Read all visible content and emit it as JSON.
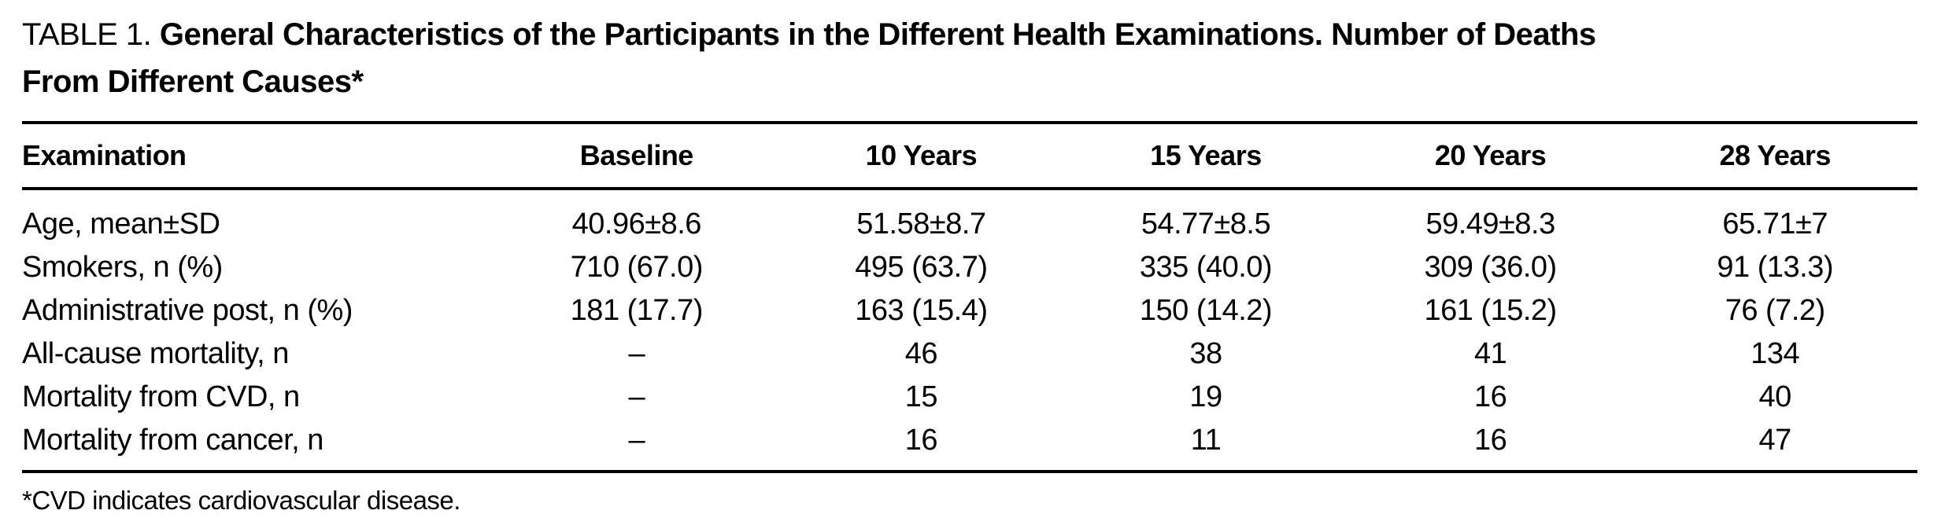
{
  "title": {
    "prefix": "TABLE 1.",
    "line1": "General Characteristics of the Participants in the Different Health Examinations. Number of Deaths",
    "line2": "From Different Causes*"
  },
  "columns": [
    "Examination",
    "Baseline",
    "10 Years",
    "15 Years",
    "20 Years",
    "28 Years"
  ],
  "rows": [
    {
      "label": "Age, mean±SD",
      "values": [
        "40.96±8.6",
        "51.58±8.7",
        "54.77±8.5",
        "59.49±8.3",
        "65.71±7"
      ]
    },
    {
      "label": "Smokers, n (%)",
      "values": [
        "710 (67.0)",
        "495 (63.7)",
        "335 (40.0)",
        "309 (36.0)",
        "91 (13.3)"
      ]
    },
    {
      "label": "Administrative post, n (%)",
      "values": [
        "181 (17.7)",
        "163 (15.4)",
        "150 (14.2)",
        "161 (15.2)",
        "76 (7.2)"
      ]
    },
    {
      "label": "All-cause mortality, n",
      "values": [
        "–",
        "46",
        "38",
        "41",
        "134"
      ]
    },
    {
      "label": "Mortality from CVD, n",
      "values": [
        "–",
        "15",
        "19",
        "16",
        "40"
      ]
    },
    {
      "label": "Mortality from cancer, n",
      "values": [
        "–",
        "16",
        "11",
        "16",
        "47"
      ]
    }
  ],
  "footnote": "*CVD indicates cardiovascular disease."
}
